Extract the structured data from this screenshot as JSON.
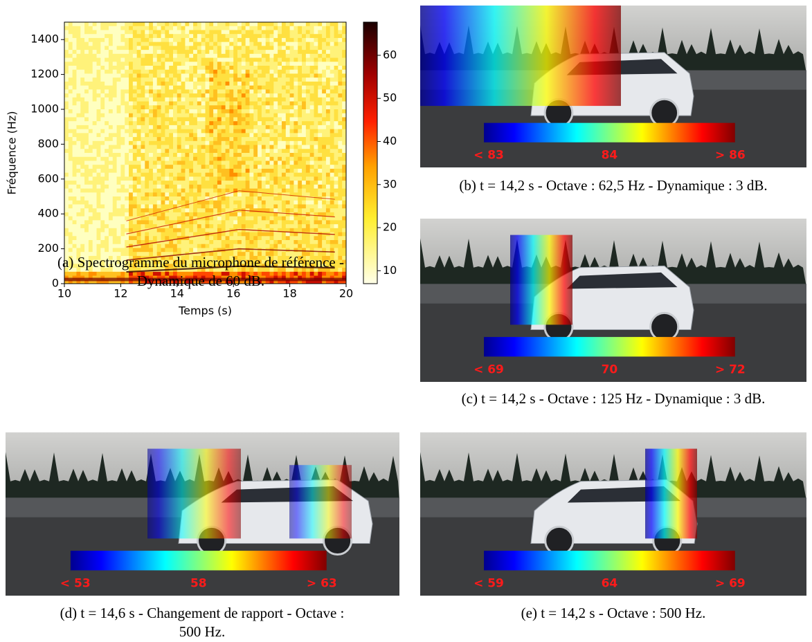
{
  "panels": [
    {
      "caption": [
        "(a) Spectrogramme du microphone de référence -",
        "Dynamique de 60 dB."
      ],
      "spectrogram": {
        "xlabel": "Temps (s)",
        "ylabel": "Fréquence (Hz)",
        "xlim": [
          10,
          20
        ],
        "xticks": [
          10,
          12,
          14,
          16,
          18,
          20
        ],
        "ylim": [
          0,
          1500
        ],
        "yticks": [
          0,
          200,
          400,
          600,
          800,
          1000,
          1200,
          1400
        ],
        "colorbar": {
          "lim": [
            7,
            67.7
          ],
          "ticks": [
            10,
            20,
            30,
            40,
            50,
            60
          ]
        }
      }
    },
    {
      "caption": [
        "(b) t = 14,2 s - Octave : 62,5 Hz - Dynamique : 3 dB."
      ],
      "colorbar_labels": [
        "< 83",
        "84",
        "> 86"
      ]
    },
    {
      "caption": [
        "(c) t = 14,2 s - Octave : 125 Hz - Dynamique : 3 dB."
      ],
      "colorbar_labels": [
        "< 69",
        "70",
        "> 72"
      ]
    },
    {
      "caption": [
        "(d) t = 14,6 s - Changement de rapport - Octave :",
        "500 Hz."
      ],
      "colorbar_labels": [
        "< 53",
        "58",
        "> 63"
      ]
    },
    {
      "caption": [
        "(e) t = 14,2 s - Octave : 500 Hz."
      ],
      "colorbar_labels": [
        "< 59",
        "64",
        "> 69"
      ]
    }
  ]
}
